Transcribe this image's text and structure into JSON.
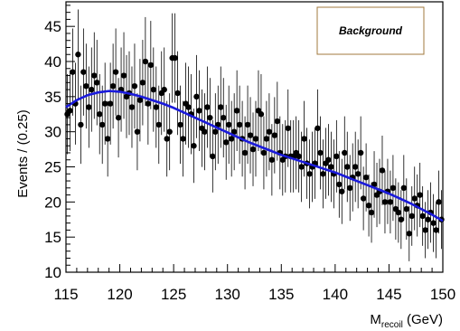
{
  "chart_data": {
    "type": "scatter",
    "title": "",
    "xlabel": "M",
    "xlabel_subscript": "recoil",
    "xlabel_unit": " (GeV)",
    "ylabel": "Events / (0.25)",
    "xlim": [
      115,
      150
    ],
    "ylim": [
      10,
      48.5
    ],
    "xticks": [
      115,
      120,
      125,
      130,
      135,
      140,
      145,
      150
    ],
    "yticks": [
      10,
      15,
      20,
      25,
      30,
      35,
      40,
      45
    ],
    "legend": {
      "label": "Background",
      "placement": "top-right"
    },
    "colors": {
      "points": "#000000",
      "fit": "#1a1adb",
      "legend_border": "#a0783c"
    },
    "series": [
      {
        "kind": "data",
        "x": [
          115.125,
          115.375,
          115.625,
          115.875,
          116.125,
          116.375,
          116.625,
          116.875,
          117.125,
          117.375,
          117.625,
          117.875,
          118.125,
          118.375,
          118.625,
          118.875,
          119.125,
          119.375,
          119.625,
          119.875,
          120.125,
          120.375,
          120.625,
          120.875,
          121.125,
          121.375,
          121.625,
          121.875,
          122.125,
          122.375,
          122.625,
          122.875,
          123.125,
          123.375,
          123.625,
          123.875,
          124.125,
          124.375,
          124.625,
          124.875,
          125.125,
          125.375,
          125.625,
          125.875,
          126.125,
          126.375,
          126.625,
          126.875,
          127.125,
          127.375,
          127.625,
          127.875,
          128.125,
          128.375,
          128.625,
          128.875,
          129.125,
          129.375,
          129.625,
          129.875,
          130.125,
          130.375,
          130.625,
          130.875,
          131.125,
          131.375,
          131.625,
          131.875,
          132.125,
          132.375,
          132.625,
          132.875,
          133.125,
          133.375,
          133.625,
          133.875,
          134.125,
          134.375,
          134.625,
          134.875,
          135.125,
          135.375,
          135.625,
          135.875,
          136.125,
          136.375,
          136.625,
          136.875,
          137.125,
          137.375,
          137.625,
          137.875,
          138.125,
          138.375,
          138.625,
          138.875,
          139.125,
          139.375,
          139.625,
          139.875,
          140.125,
          140.375,
          140.625,
          140.875,
          141.125,
          141.375,
          141.625,
          141.875,
          142.125,
          142.375,
          142.625,
          142.875,
          143.125,
          143.375,
          143.625,
          143.875,
          144.125,
          144.375,
          144.625,
          144.875,
          145.125,
          145.375,
          145.625,
          145.875,
          146.125,
          146.375,
          146.625,
          146.875,
          147.125,
          147.375,
          147.625,
          147.875,
          148.125,
          148.375,
          148.625,
          148.875,
          149.125,
          149.375,
          149.625,
          149.875
        ],
        "y": [
          32.5,
          33,
          38.5,
          34,
          41,
          31,
          38.5,
          36.5,
          33.5,
          36,
          38,
          37,
          32.5,
          31,
          34,
          29,
          34,
          36.5,
          38.5,
          32,
          36,
          38,
          35,
          35.5,
          33.5,
          36.5,
          30,
          34.5,
          37,
          40,
          34,
          39.5,
          36,
          33.5,
          31,
          35.5,
          36,
          29,
          30,
          40.5,
          40.5,
          35.5,
          31,
          29,
          34,
          33.5,
          32.5,
          28,
          35,
          33,
          30.5,
          30,
          33.5,
          32,
          26.5,
          30,
          31,
          33.5,
          32,
          28.5,
          31,
          29,
          30,
          33,
          31,
          29,
          27,
          31,
          29.5,
          27.5,
          29,
          33,
          32.5,
          27,
          29,
          30,
          26,
          29.5,
          31.5,
          27,
          26,
          26.5,
          30.5,
          26.5,
          26.5,
          27,
          26.5,
          25,
          29,
          25.5,
          24,
          25,
          25.5,
          30.5,
          27,
          24,
          25.5,
          26,
          25,
          24,
          26.5,
          22.5,
          21.5,
          27,
          25,
          22,
          23.5,
          25,
          24,
          27,
          20.5,
          23.5,
          19.5,
          18.5,
          22.5,
          21,
          21.5,
          24.5,
          20,
          21.5,
          20,
          22,
          19,
          18.5,
          17.5,
          22,
          19,
          15.5,
          18,
          20.5,
          19.5,
          21,
          18,
          16,
          17.5,
          18.5,
          17,
          16,
          20,
          17.5
        ]
      },
      {
        "kind": "fit",
        "x": [
          115,
          116,
          117,
          118,
          119,
          120,
          121,
          122,
          123,
          124,
          125,
          126,
          127,
          128,
          129,
          130,
          131,
          132,
          133,
          134,
          135,
          136,
          137,
          138,
          139,
          140,
          141,
          142,
          143,
          144,
          145,
          146,
          147,
          148,
          149,
          150
        ],
        "y": [
          33.5,
          34.5,
          35.2,
          35.6,
          35.8,
          35.7,
          35.4,
          35.0,
          34.5,
          34.0,
          33.4,
          32.7,
          32.0,
          31.3,
          30.6,
          29.9,
          29.2,
          28.5,
          27.9,
          27.3,
          26.7,
          26.2,
          25.7,
          25.2,
          24.7,
          24.2,
          23.6,
          23.0,
          22.4,
          21.8,
          21.2,
          20.5,
          19.8,
          19.0,
          18.2,
          17.3
        ]
      }
    ]
  }
}
